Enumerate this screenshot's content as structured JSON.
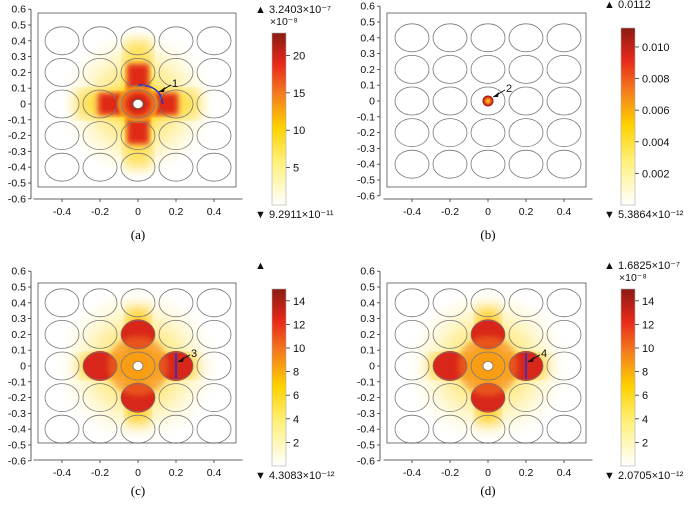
{
  "chart_data": [
    {
      "type": "heatmap",
      "panel_label": "(a)",
      "xlim": [
        -0.55,
        0.55
      ],
      "ylim": [
        -0.62,
        0.62
      ],
      "x_ticks": [
        "-0.4",
        "-0.2",
        "0",
        "0.2",
        "0.4"
      ],
      "x_tick_values": [
        -0.4,
        -0.2,
        0,
        0.2,
        0.4
      ],
      "y_ticks": [
        "0.6",
        "0.5",
        "0.4",
        "0.3",
        "0.2",
        "0.1",
        "0",
        "-0.1",
        "-0.2",
        "-0.3",
        "-0.4",
        "-0.5",
        "-0.6"
      ],
      "y_tick_values": [
        0.6,
        0.5,
        0.4,
        0.3,
        0.2,
        0.1,
        0,
        -0.1,
        -0.2,
        -0.3,
        -0.4,
        -0.5,
        -0.6
      ],
      "field_pattern": "cross",
      "colorbar": {
        "max_label": "▲ 3.2403×10⁻⁷",
        "multiplier": "×10⁻⁸",
        "min_label": "▼ 9.2911×10⁻¹¹",
        "range": [
          0,
          23
        ],
        "ticks": [
          "20",
          "15",
          "10",
          "5"
        ],
        "tick_values": [
          20,
          15,
          10,
          5
        ]
      },
      "annotation": "1"
    },
    {
      "type": "heatmap",
      "panel_label": "(b)",
      "xlim": [
        -0.55,
        0.55
      ],
      "ylim": [
        -0.62,
        0.62
      ],
      "x_ticks": [
        "-0.4",
        "-0.2",
        "0",
        "0.2",
        "0.4"
      ],
      "x_tick_values": [
        -0.4,
        -0.2,
        0,
        0.2,
        0.4
      ],
      "y_ticks": [
        "0.6",
        "0.5",
        "0.4",
        "0.3",
        "0.2",
        "0.1",
        "0",
        "-0.1",
        "-0.2",
        "-0.3",
        "-0.4",
        "-0.5",
        "-0.6"
      ],
      "y_tick_values": [
        0.6,
        0.5,
        0.4,
        0.3,
        0.2,
        0.1,
        0,
        -0.1,
        -0.2,
        -0.3,
        -0.4,
        -0.5,
        -0.6
      ],
      "field_pattern": "dot",
      "colorbar": {
        "max_label": "▲ 0.0112",
        "multiplier": "",
        "min_label": "▼ 5.3864×10⁻¹²",
        "range": [
          0,
          0.0112
        ],
        "ticks": [
          "0.010",
          "0.008",
          "0.006",
          "0.004",
          "0.002"
        ],
        "tick_values": [
          0.01,
          0.008,
          0.006,
          0.004,
          0.002
        ]
      },
      "annotation": "2"
    },
    {
      "type": "heatmap",
      "panel_label": "(c)",
      "xlim": [
        -0.55,
        0.55
      ],
      "ylim": [
        -0.62,
        0.62
      ],
      "x_ticks": [
        "-0.4",
        "-0.2",
        "0",
        "0.2",
        "0.4"
      ],
      "x_tick_values": [
        -0.4,
        -0.2,
        0,
        0.2,
        0.4
      ],
      "y_ticks": [
        "0.6",
        "0.5",
        "0.4",
        "0.3",
        "0.2",
        "0.1",
        "0",
        "-0.1",
        "-0.2",
        "-0.3",
        "-0.4",
        "-0.5",
        "-0.6"
      ],
      "y_tick_values": [
        0.6,
        0.5,
        0.4,
        0.3,
        0.2,
        0.1,
        0,
        -0.1,
        -0.2,
        -0.3,
        -0.4,
        -0.5,
        -0.6
      ],
      "field_pattern": "rods",
      "colorbar": {
        "max_label": "▲",
        "multiplier": "",
        "min_label": "▼ 4.3083×10⁻¹²",
        "range": [
          0,
          15
        ],
        "ticks": [
          "14",
          "12",
          "10",
          "8",
          "6",
          "4",
          "2"
        ],
        "tick_values": [
          14,
          12,
          10,
          8,
          6,
          4,
          2
        ]
      },
      "annotation": "3"
    },
    {
      "type": "heatmap",
      "panel_label": "(d)",
      "xlim": [
        -0.55,
        0.55
      ],
      "ylim": [
        -0.62,
        0.62
      ],
      "x_ticks": [
        "-0.4",
        "-0.2",
        "0",
        "0.2",
        "0.4"
      ],
      "x_tick_values": [
        -0.4,
        -0.2,
        0,
        0.2,
        0.4
      ],
      "y_ticks": [
        "0.6",
        "0.5",
        "0.4",
        "0.3",
        "0.2",
        "0.1",
        "0",
        "-0.1",
        "-0.2",
        "-0.3",
        "-0.4",
        "-0.5",
        "-0.6"
      ],
      "y_tick_values": [
        0.6,
        0.5,
        0.4,
        0.3,
        0.2,
        0.1,
        0,
        -0.1,
        -0.2,
        -0.3,
        -0.4,
        -0.5,
        -0.6
      ],
      "field_pattern": "rods",
      "colorbar": {
        "max_label": "▲ 1.6825×10⁻⁷",
        "multiplier": "×10⁻⁸",
        "min_label": "▼ 2.0705×10⁻¹²",
        "range": [
          0,
          15
        ],
        "ticks": [
          "14",
          "12",
          "10",
          "8",
          "6",
          "4",
          "2"
        ],
        "tick_values": [
          14,
          12,
          10,
          8,
          6,
          4,
          2
        ]
      },
      "annotation": "4"
    }
  ],
  "colors": {
    "white": "#ffffff",
    "yellow": "#ffe000",
    "orange": "#f47a1e",
    "red": "#e8281a",
    "dark_red": "#8b1a12",
    "line": "#222222",
    "blue": "#2233cc"
  }
}
